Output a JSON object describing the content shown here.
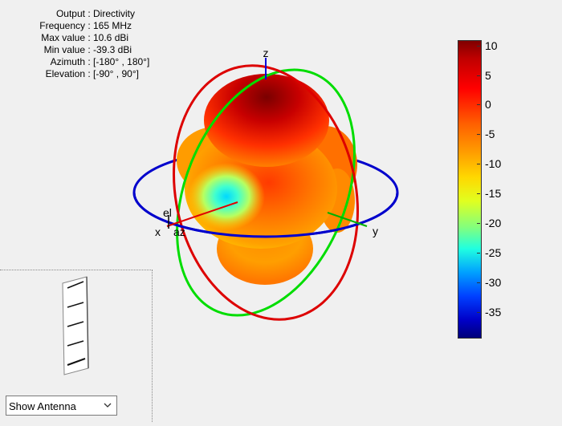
{
  "info": {
    "output_label": "Output",
    "output_value": "Directivity",
    "frequency_label": "Frequency",
    "frequency_value": "165 MHz",
    "max_label": "Max value",
    "max_value": "10.6 dBi",
    "min_label": "Min value",
    "min_value": "-39.3 dBi",
    "azimuth_label": "Azimuth",
    "azimuth_value": "[-180° , 180°]",
    "elevation_label": "Elevation",
    "elevation_value": "[-90° , 90°]"
  },
  "axes": {
    "x": "x",
    "y": "y",
    "z": "z",
    "el": "el",
    "az": "az"
  },
  "colorbar": {
    "ticks": [
      "10",
      "5",
      "0",
      "-5",
      "-10",
      "-15",
      "-20",
      "-25",
      "-30",
      "-35"
    ],
    "max": 10.6,
    "min": -39.3
  },
  "control": {
    "show_antenna": "Show Antenna"
  },
  "colors": {
    "x_axis": "#e00000",
    "y_axis": "#00b000",
    "z_axis": "#0000dd",
    "ring_az": "#0000cc",
    "ring_el": "#dd0000",
    "ring_other": "#00dd00"
  }
}
